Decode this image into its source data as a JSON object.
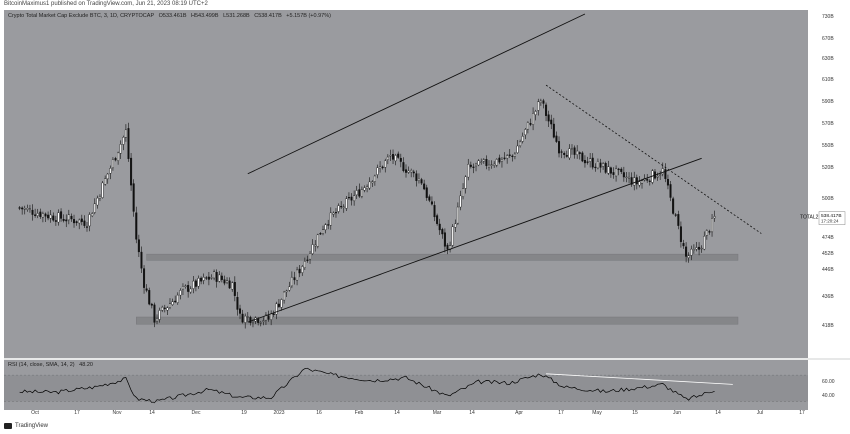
{
  "header": {
    "publisher": "BitcoinMaximus1 published on TradingView.com, Jun 21, 2023 08:19 UTC+2"
  },
  "chart_data": [
    {
      "type": "candlestick",
      "title": "Crypto Total Market Cap Exclude BTC, 3, 1D, CRYPTOCAP",
      "ohlc": {
        "open": "O533.461B",
        "high": "H543.499B",
        "low": "L531.268B",
        "close": "C538.417B",
        "change": "+5.157B (+0.97%)"
      },
      "x_ticks": [
        "Oct",
        "17",
        "Nov",
        "14",
        "Dec",
        "19",
        "2023",
        "16",
        "Feb",
        "14",
        "Mar",
        "14",
        "Apr",
        "17",
        "May",
        "15",
        "Jun",
        "14",
        "Jul",
        "17"
      ],
      "y_ticks": [
        "730B",
        "670B",
        "630B",
        "610B",
        "590B",
        "570B",
        "550B",
        "520B",
        "500B",
        "496B",
        "474B",
        "452B",
        "446B",
        "436B",
        "418B"
      ],
      "y_unit": "billion USD",
      "ylim": [
        410,
        736
      ],
      "last_price_tag": {
        "label": "TOTAL2",
        "value": "538.417B",
        "countdown": "17:20:24",
        "price": 538.4
      },
      "horizontal_zones": [
        {
          "from": "2022-11-14",
          "to": "2023-06-30",
          "low": 497,
          "high": 503
        },
        {
          "from": "2022-11-10",
          "to": "2023-06-30",
          "low": 435,
          "high": 442
        }
      ],
      "trend_lines": [
        {
          "style": "solid",
          "from": {
            "date": "2022-12-23",
            "value": 581
          },
          "to": {
            "date": "2023-05-02",
            "value": 736
          }
        },
        {
          "style": "solid",
          "from": {
            "date": "2022-12-23",
            "value": 437
          },
          "to": {
            "date": "2023-06-16",
            "value": 596
          }
        },
        {
          "style": "dashed",
          "from": {
            "date": "2023-04-17",
            "value": 667
          },
          "to": {
            "date": "2023-07-09",
            "value": 523
          }
        }
      ],
      "key_points": [
        {
          "date": "2022-09-26",
          "value": 548
        },
        {
          "date": "2022-10-08",
          "value": 540
        },
        {
          "date": "2022-10-22",
          "value": 534
        },
        {
          "date": "2022-11-06",
          "value": 622
        },
        {
          "date": "2022-11-10",
          "value": 518
        },
        {
          "date": "2022-11-13",
          "value": 475
        },
        {
          "date": "2022-11-17",
          "value": 440
        },
        {
          "date": "2022-11-28",
          "value": 468
        },
        {
          "date": "2022-12-10",
          "value": 482
        },
        {
          "date": "2022-12-17",
          "value": 474
        },
        {
          "date": "2022-12-20",
          "value": 442
        },
        {
          "date": "2022-12-31",
          "value": 440
        },
        {
          "date": "2023-01-12",
          "value": 488
        },
        {
          "date": "2023-01-22",
          "value": 534
        },
        {
          "date": "2023-02-05",
          "value": 566
        },
        {
          "date": "2023-02-16",
          "value": 598
        },
        {
          "date": "2023-02-28",
          "value": 574
        },
        {
          "date": "2023-03-10",
          "value": 506
        },
        {
          "date": "2023-03-18",
          "value": 586
        },
        {
          "date": "2023-04-04",
          "value": 598
        },
        {
          "date": "2023-04-15",
          "value": 652
        },
        {
          "date": "2023-04-22",
          "value": 606
        },
        {
          "date": "2023-05-08",
          "value": 588
        },
        {
          "date": "2023-05-22",
          "value": 572
        },
        {
          "date": "2023-06-01",
          "value": 584
        },
        {
          "date": "2023-06-10",
          "value": 500
        },
        {
          "date": "2023-06-15",
          "value": 508
        },
        {
          "date": "2023-06-21",
          "value": 538
        }
      ],
      "colors": {
        "background": "#9a9b9f",
        "zone": "#858689",
        "candle": "#ffffff",
        "line": "#111111"
      }
    },
    {
      "type": "line",
      "title": "RSI (14, close, SMA, 14, 2)",
      "value_label": "48.20",
      "y_ticks": [
        "60.00",
        "40.00"
      ],
      "ylim": [
        20,
        90
      ],
      "bands": [
        30,
        70
      ],
      "trend_line": {
        "from": {
          "date": "2023-04-17",
          "value": 72
        },
        "to": {
          "date": "2023-06-28",
          "value": 56
        }
      },
      "key_points": [
        {
          "date": "2022-09-26",
          "value": 45
        },
        {
          "date": "2022-10-10",
          "value": 44
        },
        {
          "date": "2022-10-25",
          "value": 52
        },
        {
          "date": "2022-11-06",
          "value": 64
        },
        {
          "date": "2022-11-10",
          "value": 34
        },
        {
          "date": "2022-11-18",
          "value": 30
        },
        {
          "date": "2022-12-08",
          "value": 48
        },
        {
          "date": "2022-12-20",
          "value": 36
        },
        {
          "date": "2023-01-01",
          "value": 36
        },
        {
          "date": "2023-01-14",
          "value": 80
        },
        {
          "date": "2023-01-25",
          "value": 70
        },
        {
          "date": "2023-02-09",
          "value": 62
        },
        {
          "date": "2023-02-22",
          "value": 66
        },
        {
          "date": "2023-03-10",
          "value": 38
        },
        {
          "date": "2023-03-22",
          "value": 60
        },
        {
          "date": "2023-04-03",
          "value": 58
        },
        {
          "date": "2023-04-15",
          "value": 72
        },
        {
          "date": "2023-04-24",
          "value": 52
        },
        {
          "date": "2023-05-10",
          "value": 45
        },
        {
          "date": "2023-05-25",
          "value": 52
        },
        {
          "date": "2023-06-01",
          "value": 56
        },
        {
          "date": "2023-06-10",
          "value": 33
        },
        {
          "date": "2023-06-16",
          "value": 40
        },
        {
          "date": "2023-06-21",
          "value": 48
        }
      ],
      "colors": {
        "background": "#9a9b9f",
        "band": "#8f9094",
        "line": "#000000",
        "trend": "#ffffff"
      }
    }
  ],
  "footer": {
    "brand": "TradingView"
  }
}
